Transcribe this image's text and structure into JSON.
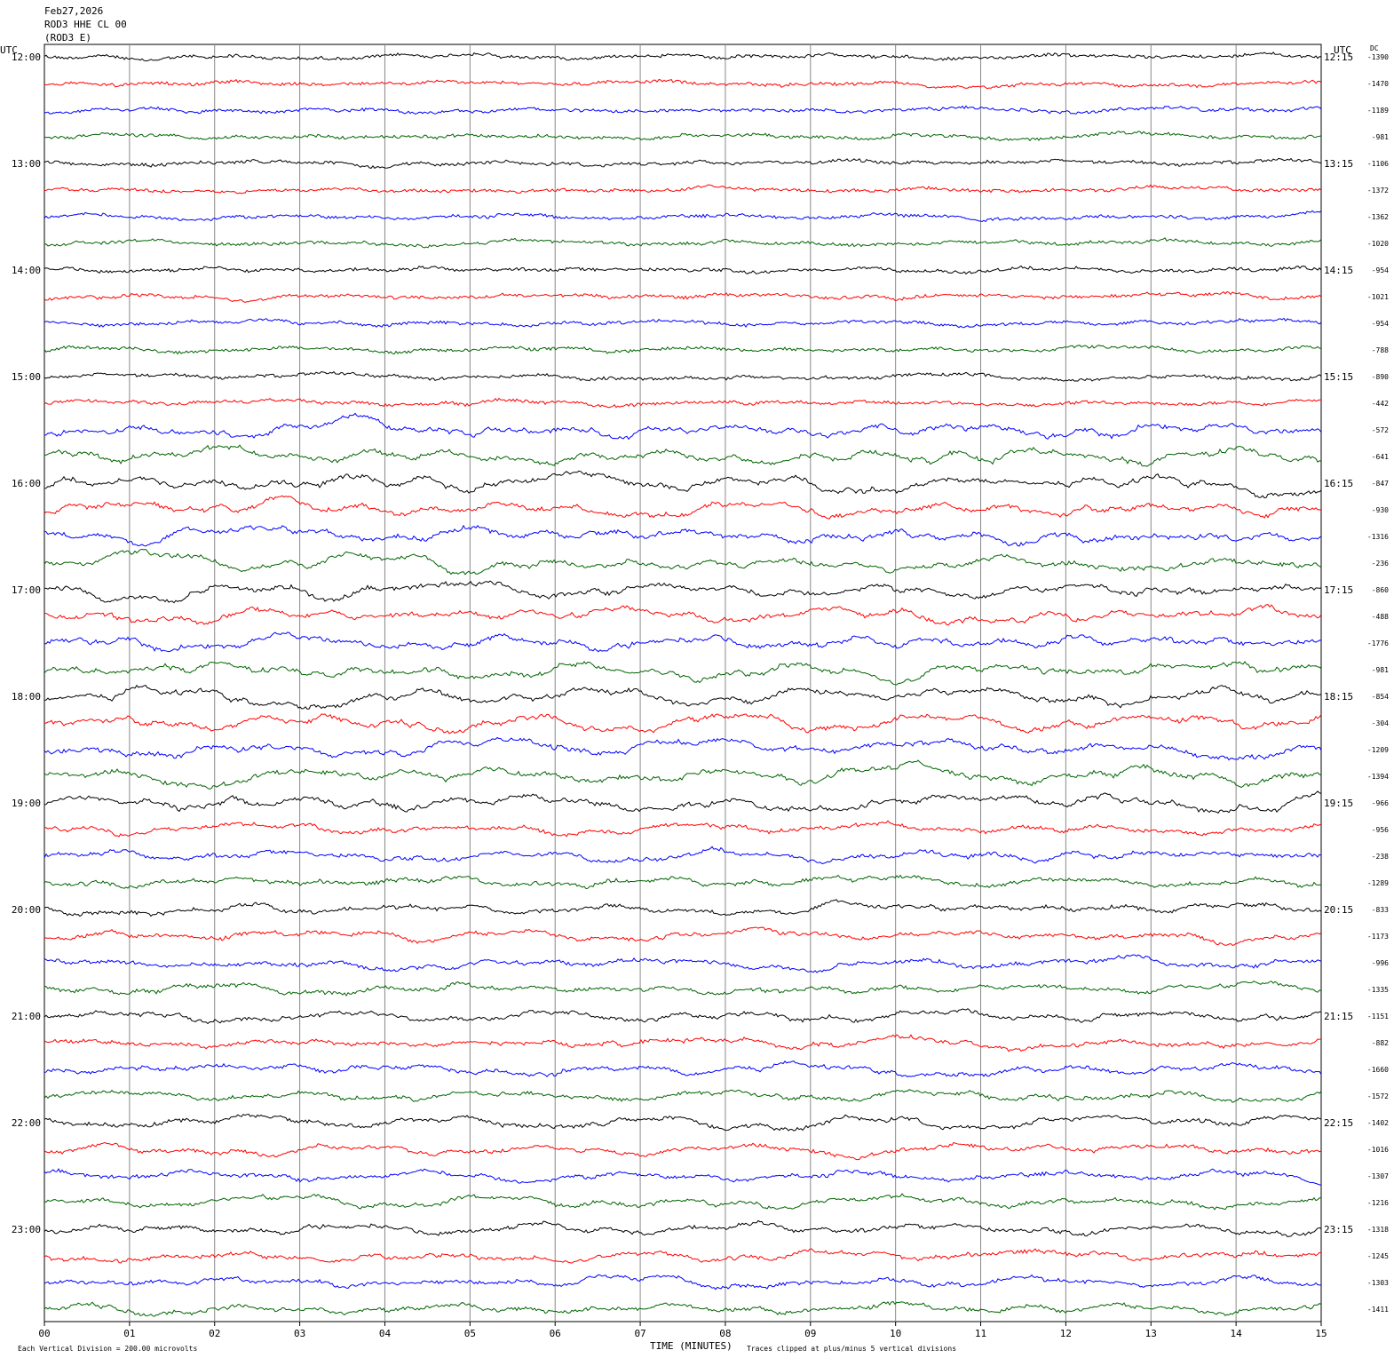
{
  "header": {
    "date": "Feb27,2026",
    "station": "ROD3 HHE CL 00",
    "component": "(ROD3 E)",
    "left_unit": "UTC",
    "right_unit": "UTC",
    "dc_header": "DC"
  },
  "left_labels": [
    "12:00",
    "13:00",
    "14:00",
    "15:00",
    "16:00",
    "17:00",
    "18:00",
    "19:00",
    "20:00",
    "21:00",
    "22:00",
    "23:00"
  ],
  "right_labels": [
    "12:15",
    "13:15",
    "14:15",
    "15:15",
    "16:15",
    "17:15",
    "18:15",
    "19:15",
    "20:15",
    "21:15",
    "22:15",
    "23:15"
  ],
  "dc_values": [
    -1390,
    -1470,
    -1189,
    -981,
    -1106,
    -1372,
    -1362,
    -1020,
    -954,
    -1021,
    -954,
    -788,
    -890,
    -442,
    -572,
    -641,
    -847,
    -930,
    -1316,
    -236,
    -860,
    -488,
    -1776,
    -981,
    -854,
    -304,
    -1209,
    -1394,
    -966,
    -956,
    -238,
    -1289,
    -833,
    -1173,
    -996,
    -1335,
    -1151,
    -882,
    -1660,
    -1572,
    -1402,
    -1016,
    -1307,
    -1216,
    -1318,
    -1245,
    -1303,
    -1411
  ],
  "trace_colors": [
    "#000000",
    "#ff0000",
    "#0000ff",
    "#006400"
  ],
  "x_labels": [
    "00",
    "01",
    "02",
    "03",
    "04",
    "05",
    "06",
    "07",
    "08",
    "09",
    "10",
    "11",
    "12",
    "13",
    "14",
    "15"
  ],
  "footer": {
    "x_title": "TIME (MINUTES)",
    "scale_note": "Each Vertical Division =  200.00 microvolts",
    "clip_note": "Traces clipped at plus/minus 5 vertical divisions"
  }
}
